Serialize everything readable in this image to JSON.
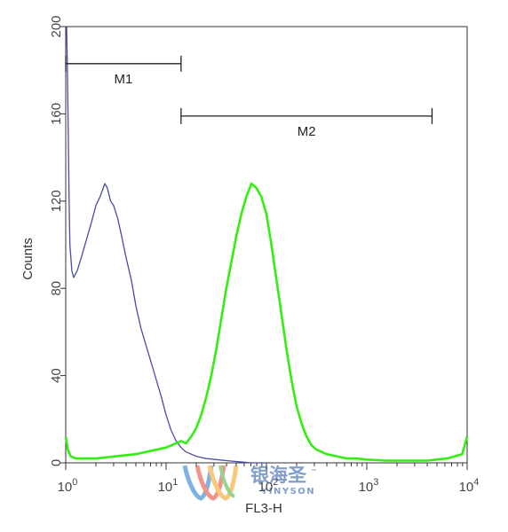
{
  "chart_data": {
    "type": "line",
    "xlabel": "FL3-H",
    "ylabel": "Counts",
    "xscale": "log",
    "xlim": [
      1,
      10000
    ],
    "ylim": [
      0,
      200
    ],
    "grid": false,
    "legend": "none",
    "x_ticks": [
      {
        "value": 1,
        "base": "10",
        "exp": "0"
      },
      {
        "value": 10,
        "base": "10",
        "exp": "1"
      },
      {
        "value": 100,
        "base": "10",
        "exp": "2"
      },
      {
        "value": 1000,
        "base": "10",
        "exp": "3"
      },
      {
        "value": 10000,
        "base": "10",
        "exp": "4"
      }
    ],
    "y_ticks": [
      {
        "value": 0,
        "label": "0"
      },
      {
        "value": 40,
        "label": "40"
      },
      {
        "value": 80,
        "label": "80"
      },
      {
        "value": 120,
        "label": "120"
      },
      {
        "value": 160,
        "label": "160"
      },
      {
        "value": 200,
        "label": "200"
      }
    ],
    "series": [
      {
        "color": "#4a4aa8",
        "x": [
          1.0,
          1.02,
          1.04,
          1.06,
          1.08,
          1.1,
          1.15,
          1.2,
          1.3,
          1.45,
          1.6,
          1.8,
          2.0,
          2.2,
          2.45,
          2.6,
          2.8,
          3.0,
          3.3,
          3.6,
          4.0,
          4.5,
          5.0,
          5.6,
          6.3,
          7.1,
          8.0,
          9.0,
          10.0,
          11.2,
          12.6,
          14.1,
          15.8,
          17.8,
          20.0,
          25.0,
          31.6,
          40.0,
          50.0,
          60.0,
          70.8,
          100.0
        ],
        "y": [
          200,
          200,
          180,
          150,
          120,
          100,
          88,
          85,
          88,
          95,
          102,
          110,
          118,
          122,
          128,
          126,
          120,
          118,
          112,
          104,
          94,
          84,
          72,
          62,
          54,
          46,
          38,
          30,
          22,
          15,
          10,
          7,
          5,
          4,
          3,
          2,
          1.5,
          1,
          0.6,
          0.3,
          0,
          0
        ]
      },
      {
        "color": "#33ee11",
        "x": [
          1.0,
          1.05,
          1.12,
          1.26,
          1.58,
          2.0,
          3.16,
          5.0,
          7.94,
          10.0,
          12.6,
          14.1,
          15.8,
          17.8,
          20.0,
          22.4,
          25.1,
          28.2,
          31.6,
          35.5,
          39.8,
          44.7,
          50.1,
          56.2,
          63.1,
          70.8,
          79.4,
          89.1,
          100.0,
          112.2,
          125.9,
          141.3,
          158.5,
          177.8,
          199.5,
          223.9,
          251.2,
          281.8,
          316.2,
          398.1,
          501.2,
          631.0,
          794.3,
          1000,
          1585,
          2512,
          3981,
          6310,
          8913,
          10000
        ],
        "y": [
          12,
          6,
          3,
          2,
          2,
          2,
          3,
          4,
          6,
          7,
          9,
          10,
          9,
          12,
          16,
          22,
          30,
          40,
          52,
          66,
          80,
          92,
          104,
          114,
          122,
          128,
          126,
          122,
          114,
          100,
          84,
          68,
          52,
          38,
          26,
          18,
          12,
          8,
          6,
          4,
          3,
          2,
          2,
          1.5,
          1,
          1,
          1,
          2,
          4,
          12
        ]
      }
    ],
    "markers": [
      {
        "label": "M1",
        "x_start": 1,
        "x_end": 14.1,
        "y": 183
      },
      {
        "label": "M2",
        "x_start": 14.1,
        "x_end": 4467,
        "y": 159
      }
    ],
    "watermark": {
      "cn": "银海圣",
      "en": "YINYSON",
      "tm": "™"
    }
  }
}
